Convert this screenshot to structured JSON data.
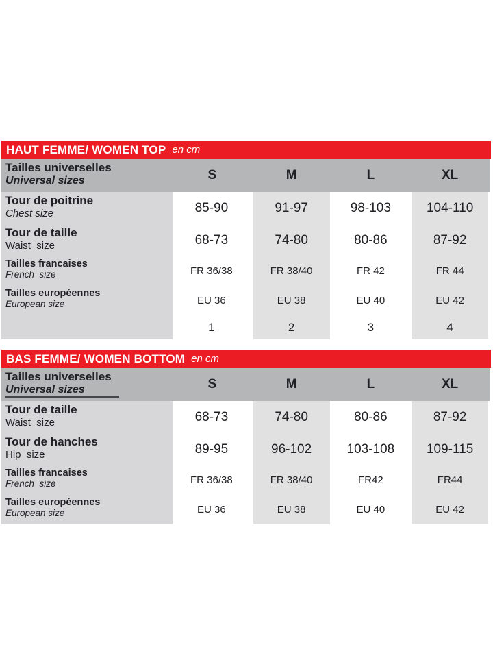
{
  "colors": {
    "red": "#ec1c24",
    "header_gray": "#b5b6b8",
    "label_gray": "#d7d7d9",
    "cell_gray": "#e1e1e2",
    "text": "#222226",
    "title_text": "#ffffff"
  },
  "tables": [
    {
      "title": "HAUT FEMME/ WOMEN TOP",
      "unit": "en cm",
      "header": {
        "label_fr": "Tailles universelles",
        "label_en": "Universal sizes",
        "underline": false,
        "sizes": [
          "S",
          "M",
          "L",
          "XL"
        ]
      },
      "rows": [
        {
          "label_fr": "Tour de poitrine",
          "label_en": "Chest size",
          "en_italic": true,
          "type": "big",
          "values": [
            "85-90",
            "91-97",
            "98-103",
            "104-110"
          ]
        },
        {
          "label_fr": "Tour de taille",
          "label_en": "Waist  size",
          "en_italic": false,
          "type": "big",
          "values": [
            "68-73",
            "74-80",
            "80-86",
            "87-92"
          ]
        },
        {
          "label_fr": "Tailles francaises",
          "label_en": "French  size",
          "en_italic": true,
          "type": "small",
          "values": [
            "FR 36/38",
            "FR 38/40",
            "FR 42",
            "FR 44"
          ]
        },
        {
          "label_fr": "Tailles européennes",
          "label_en": "European size",
          "en_italic": true,
          "type": "small",
          "values": [
            "EU 36",
            "EU 38",
            "EU 40",
            "EU 42"
          ]
        },
        {
          "label_fr": "",
          "label_en": "",
          "en_italic": false,
          "type": "numbers",
          "values": [
            "1",
            "2",
            "3",
            "4"
          ]
        }
      ]
    },
    {
      "title": "BAS FEMME/ WOMEN BOTTOM",
      "unit": "en cm",
      "header": {
        "label_fr": "Tailles universelles",
        "label_en": "Universal sizes",
        "underline": true,
        "sizes": [
          "S",
          "M",
          "L",
          "XL"
        ]
      },
      "rows": [
        {
          "label_fr": "Tour de taille",
          "label_en": "Waist  size",
          "en_italic": false,
          "type": "big",
          "values": [
            "68-73",
            "74-80",
            "80-86",
            "87-92"
          ]
        },
        {
          "label_fr": "Tour de hanches",
          "label_en": "Hip  size",
          "en_italic": false,
          "type": "big",
          "values": [
            "89-95",
            "96-102",
            "103-108",
            "109-115"
          ]
        },
        {
          "label_fr": "Tailles francaises",
          "label_en": "French  size",
          "en_italic": true,
          "type": "small",
          "values": [
            "FR 36/38",
            "FR 38/40",
            "FR42",
            "FR44"
          ]
        },
        {
          "label_fr": "Tailles européennes",
          "label_en": "European size",
          "en_italic": true,
          "type": "small",
          "values": [
            "EU 36",
            "EU 38",
            "EU 40",
            "EU 42"
          ]
        }
      ]
    }
  ]
}
